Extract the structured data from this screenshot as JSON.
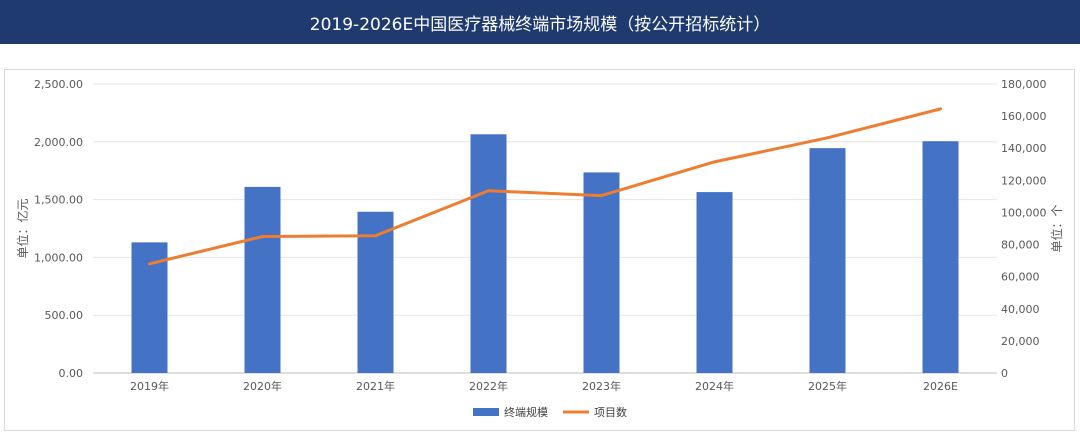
{
  "title": "2019-2026E中国医疗器械终端市场规模（按公开招标统计）",
  "colors": {
    "header_bg": "#1f3a6e",
    "bar": "#4472c4",
    "line": "#ed7d31"
  },
  "chart_data": {
    "type": "bar",
    "categories": [
      "2019年",
      "2020年",
      "2021年",
      "2022年",
      "2023年",
      "2024年",
      "2025年",
      "2026E"
    ],
    "series": [
      {
        "name": "终端规模",
        "type": "bar",
        "axis": "left",
        "values": [
          1130,
          1610,
          1395,
          2065,
          1735,
          1565,
          1945,
          2005
        ]
      },
      {
        "name": "项目数",
        "type": "line",
        "axis": "right",
        "values": [
          68000,
          85000,
          85500,
          113500,
          110500,
          131500,
          146500,
          164500
        ]
      }
    ],
    "y_left": {
      "label": "单位：亿元",
      "ylim": [
        0,
        2500
      ],
      "ticks": [
        "0.00",
        "500.00",
        "1,000.00",
        "1,500.00",
        "2,000.00",
        "2,500.00"
      ]
    },
    "y_right": {
      "label": "单位：个",
      "ylim": [
        0,
        180000
      ],
      "ticks": [
        "0",
        "20,000",
        "40,000",
        "60,000",
        "80,000",
        "100,000",
        "120,000",
        "140,000",
        "160,000",
        "180,000"
      ]
    },
    "legend": [
      "终端规模",
      "项目数"
    ],
    "legend_position": "bottom"
  }
}
